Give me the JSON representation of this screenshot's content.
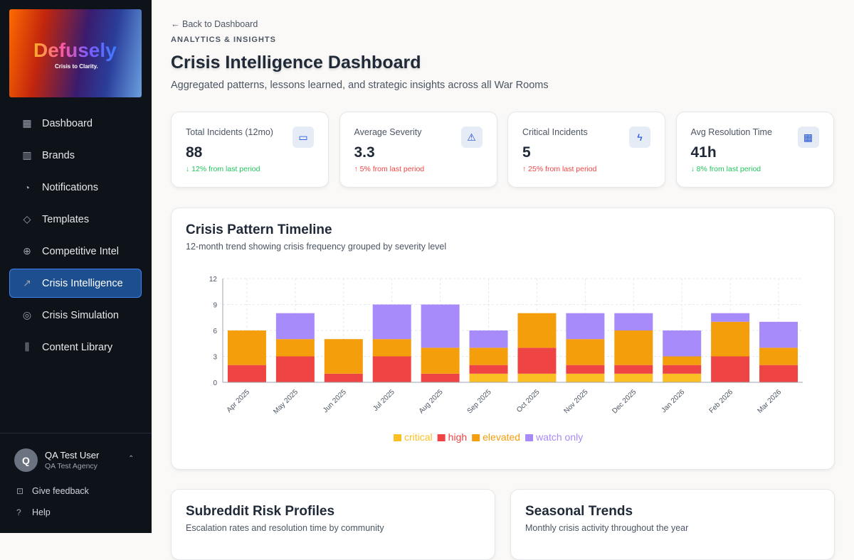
{
  "sidebar": {
    "logo_text": "Defusely",
    "logo_tagline": "Crisis to Clarity.",
    "items": [
      {
        "label": "Dashboard",
        "icon": "grid-icon"
      },
      {
        "label": "Brands",
        "icon": "building-icon"
      },
      {
        "label": "Notifications",
        "icon": "bell-icon"
      },
      {
        "label": "Templates",
        "icon": "tag-icon"
      },
      {
        "label": "Competitive Intel",
        "icon": "crosshair-icon"
      },
      {
        "label": "Crisis Intelligence",
        "icon": "trending-up-icon",
        "active": true
      },
      {
        "label": "Crisis Simulation",
        "icon": "target-icon"
      },
      {
        "label": "Content Library",
        "icon": "library-icon"
      }
    ],
    "user": {
      "initial": "Q",
      "name": "QA Test User",
      "org": "QA Test Agency"
    },
    "feedback": "Give feedback",
    "help": "Help"
  },
  "header": {
    "back": "Back to Dashboard",
    "eyebrow": "ANALYTICS & INSIGHTS",
    "title": "Crisis Intelligence Dashboard",
    "subtitle": "Aggregated patterns, lessons learned, and strategic insights across all War Rooms"
  },
  "stats": [
    {
      "label": "Total Incidents (12mo)",
      "value": "88",
      "change": "↓ 12% from last period",
      "trend": "down",
      "icon": "message-icon"
    },
    {
      "label": "Average Severity",
      "value": "3.3",
      "change": "↑ 5% from last period",
      "trend": "up",
      "icon": "alert-triangle-icon"
    },
    {
      "label": "Critical Incidents",
      "value": "5",
      "change": "↑ 25% from last period",
      "trend": "up",
      "icon": "zap-icon"
    },
    {
      "label": "Avg Resolution Time",
      "value": "41h",
      "change": "↓ 8% from last period",
      "trend": "down",
      "icon": "calendar-icon"
    }
  ],
  "timeline": {
    "title": "Crisis Pattern Timeline",
    "subtitle": "12-month trend showing crisis frequency grouped by severity level"
  },
  "chart_data": {
    "type": "bar",
    "stacked": true,
    "grid": true,
    "legend": "bottom",
    "ylim": [
      0,
      12
    ],
    "yticks": [
      0,
      3,
      6,
      9,
      12
    ],
    "categories": [
      "Apr 2025",
      "May 2025",
      "Jun 2025",
      "Jul 2025",
      "Aug 2025",
      "Sep 2025",
      "Oct 2025",
      "Nov 2025",
      "Dec 2025",
      "Jan 2026",
      "Feb 2026",
      "Mar 2026"
    ],
    "series": [
      {
        "name": "critical",
        "color": "#fbbf24",
        "values": [
          0,
          0,
          0,
          0,
          0,
          1,
          1,
          1,
          1,
          1,
          0,
          0
        ]
      },
      {
        "name": "high",
        "color": "#ef4444",
        "values": [
          2,
          3,
          1,
          3,
          1,
          1,
          3,
          1,
          1,
          1,
          3,
          2
        ]
      },
      {
        "name": "elevated",
        "color": "#f59e0b",
        "values": [
          4,
          2,
          4,
          2,
          3,
          2,
          4,
          3,
          4,
          1,
          4,
          2
        ]
      },
      {
        "name": "watch only",
        "color": "#a78bfa",
        "values": [
          0,
          3,
          0,
          4,
          5,
          2,
          0,
          3,
          2,
          3,
          1,
          3
        ]
      }
    ]
  },
  "panels": [
    {
      "title": "Subreddit Risk Profiles",
      "subtitle": "Escalation rates and resolution time by community"
    },
    {
      "title": "Seasonal Trends",
      "subtitle": "Monthly crisis activity throughout the year"
    }
  ]
}
